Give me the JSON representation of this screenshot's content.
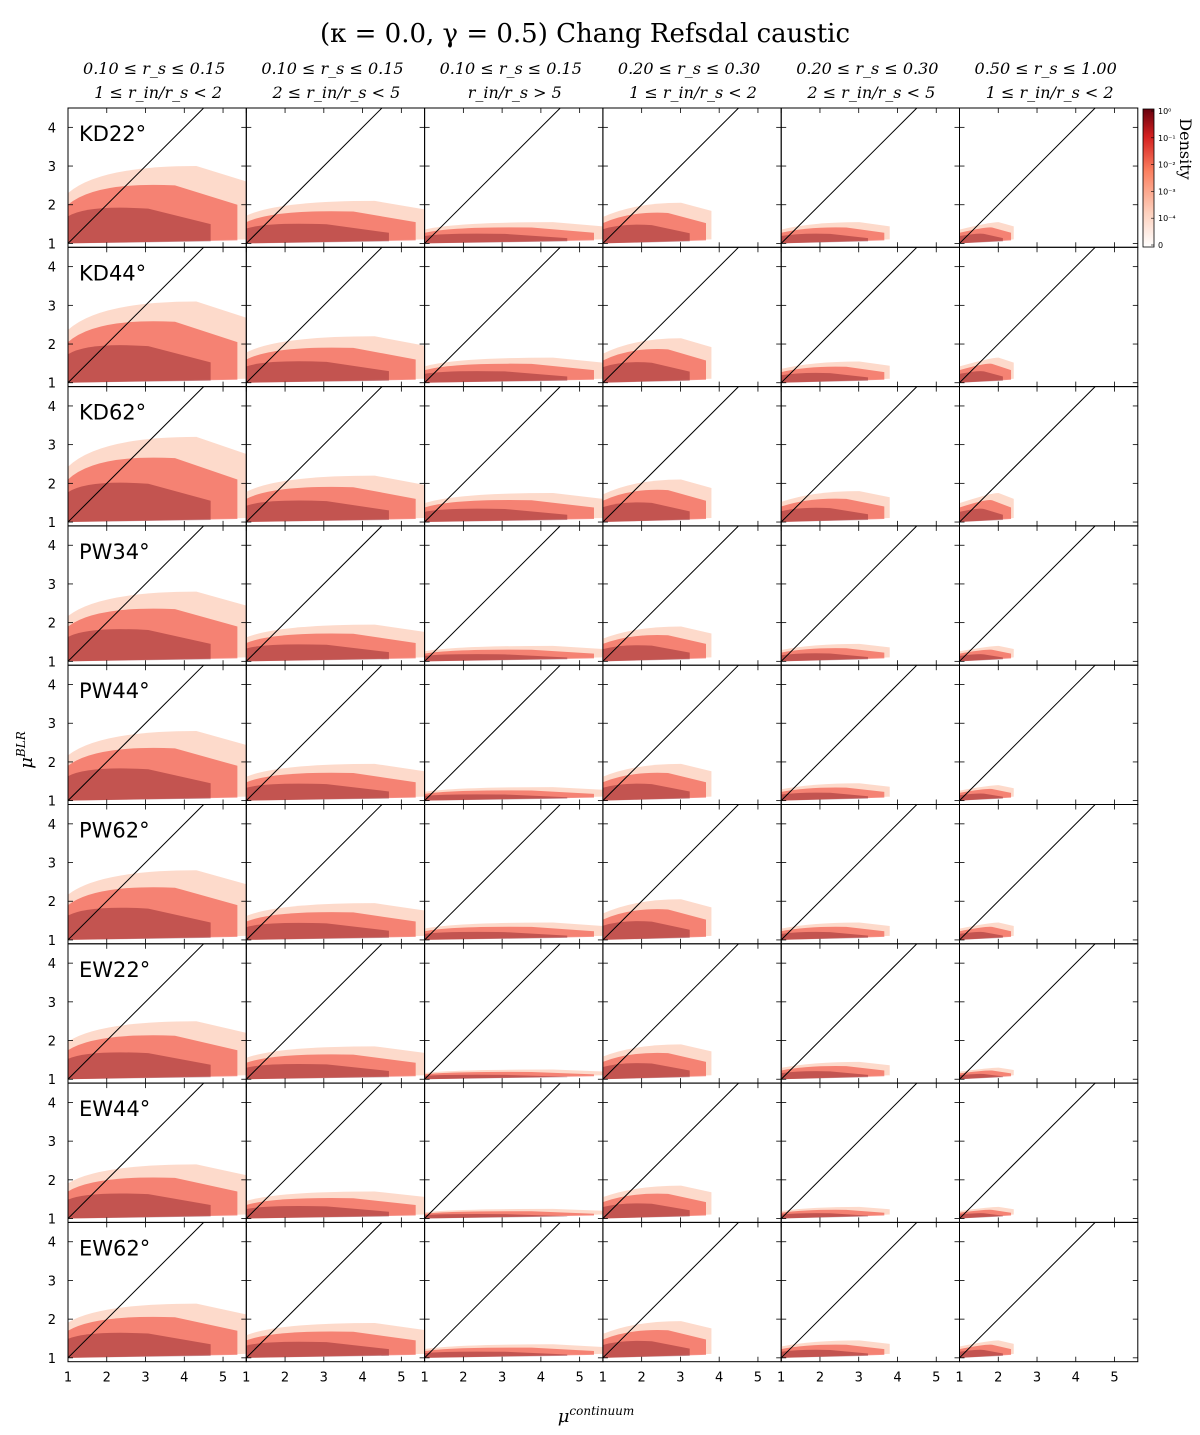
{
  "chart_data": {
    "type": "heatmap",
    "title": "(κ = 0.0, γ = 0.5) Chang Refsdal caustic",
    "xlabel": "μ",
    "xlabel_sup": "continuum",
    "ylabel": "μ",
    "ylabel_sup": "BLR",
    "xlim": [
      1,
      5.6
    ],
    "ylim": [
      0.9,
      4.5
    ],
    "x_ticks": [
      "1",
      "2",
      "3",
      "4",
      "5"
    ],
    "y_ticks": [
      "1",
      "2",
      "3",
      "4"
    ],
    "diagonal_line": "y = x",
    "columns": [
      {
        "line1": "0.10 ≤ r_s ≤ 0.15",
        "line2": "1 ≤ r_in/r_s < 2"
      },
      {
        "line1": "0.10 ≤ r_s ≤ 0.15",
        "line2": "2 ≤ r_in/r_s < 5"
      },
      {
        "line1": "0.10 ≤ r_s ≤ 0.15",
        "line2": "r_in/r_s > 5"
      },
      {
        "line1": "0.20 ≤ r_s ≤ 0.30",
        "line2": "1 ≤ r_in/r_s < 2"
      },
      {
        "line1": "0.20 ≤ r_s ≤ 0.30",
        "line2": "2 ≤ r_in/r_s < 5"
      },
      {
        "line1": "0.50 ≤ r_s ≤ 1.00",
        "line2": "1 ≤ r_in/r_s < 2"
      }
    ],
    "rows": [
      "KD22°",
      "KD44°",
      "KD62°",
      "PW34°",
      "PW44°",
      "PW62°",
      "EW22°",
      "EW44°",
      "EW62°"
    ],
    "density_extent": [
      [
        {
          "xmax": 5.6,
          "ytop": 3.0
        },
        {
          "xmax": 5.6,
          "ytop": 2.1
        },
        {
          "xmax": 5.6,
          "ytop": 1.55
        },
        {
          "xmax": 3.8,
          "ytop": 2.05
        },
        {
          "xmax": 3.8,
          "ytop": 1.55
        },
        {
          "xmax": 2.4,
          "ytop": 1.55
        }
      ],
      [
        {
          "xmax": 5.6,
          "ytop": 3.1
        },
        {
          "xmax": 5.6,
          "ytop": 2.2
        },
        {
          "xmax": 5.6,
          "ytop": 1.65
        },
        {
          "xmax": 3.8,
          "ytop": 2.15
        },
        {
          "xmax": 3.8,
          "ytop": 1.55
        },
        {
          "xmax": 2.4,
          "ytop": 1.65
        }
      ],
      [
        {
          "xmax": 5.6,
          "ytop": 3.2
        },
        {
          "xmax": 5.6,
          "ytop": 2.2
        },
        {
          "xmax": 5.6,
          "ytop": 1.75
        },
        {
          "xmax": 3.8,
          "ytop": 2.1
        },
        {
          "xmax": 3.8,
          "ytop": 1.8
        },
        {
          "xmax": 2.4,
          "ytop": 1.75
        }
      ],
      [
        {
          "xmax": 5.6,
          "ytop": 2.8
        },
        {
          "xmax": 5.6,
          "ytop": 1.95
        },
        {
          "xmax": 5.6,
          "ytop": 1.4
        },
        {
          "xmax": 3.8,
          "ytop": 1.9
        },
        {
          "xmax": 3.8,
          "ytop": 1.45
        },
        {
          "xmax": 2.4,
          "ytop": 1.4
        }
      ],
      [
        {
          "xmax": 5.6,
          "ytop": 2.8
        },
        {
          "xmax": 5.6,
          "ytop": 1.95
        },
        {
          "xmax": 5.6,
          "ytop": 1.35
        },
        {
          "xmax": 3.8,
          "ytop": 1.95
        },
        {
          "xmax": 3.8,
          "ytop": 1.45
        },
        {
          "xmax": 2.4,
          "ytop": 1.4
        }
      ],
      [
        {
          "xmax": 5.6,
          "ytop": 2.8
        },
        {
          "xmax": 5.6,
          "ytop": 1.95
        },
        {
          "xmax": 5.6,
          "ytop": 1.45
        },
        {
          "xmax": 3.8,
          "ytop": 2.05
        },
        {
          "xmax": 3.8,
          "ytop": 1.45
        },
        {
          "xmax": 2.4,
          "ytop": 1.45
        }
      ],
      [
        {
          "xmax": 5.6,
          "ytop": 2.5
        },
        {
          "xmax": 5.6,
          "ytop": 1.85
        },
        {
          "xmax": 5.6,
          "ytop": 1.25
        },
        {
          "xmax": 3.8,
          "ytop": 1.9
        },
        {
          "xmax": 3.8,
          "ytop": 1.45
        },
        {
          "xmax": 2.4,
          "ytop": 1.3
        }
      ],
      [
        {
          "xmax": 5.6,
          "ytop": 2.4
        },
        {
          "xmax": 5.6,
          "ytop": 1.7
        },
        {
          "xmax": 5.6,
          "ytop": 1.25
        },
        {
          "xmax": 3.8,
          "ytop": 1.85
        },
        {
          "xmax": 3.8,
          "ytop": 1.3
        },
        {
          "xmax": 2.4,
          "ytop": 1.3
        }
      ],
      [
        {
          "xmax": 5.6,
          "ytop": 2.4
        },
        {
          "xmax": 5.6,
          "ytop": 1.9
        },
        {
          "xmax": 5.6,
          "ytop": 1.35
        },
        {
          "xmax": 3.8,
          "ytop": 1.95
        },
        {
          "xmax": 3.8,
          "ytop": 1.45
        },
        {
          "xmax": 2.4,
          "ytop": 1.45
        }
      ]
    ],
    "colorbar": {
      "label": "Density",
      "ticks": [
        "10⁰",
        "10⁻¹",
        "10⁻²",
        "10⁻³",
        "10⁻⁴",
        "0"
      ]
    },
    "colors": {
      "dark": "#67000d",
      "mid": "#ef3b2c",
      "light": "#fcbba1"
    }
  }
}
